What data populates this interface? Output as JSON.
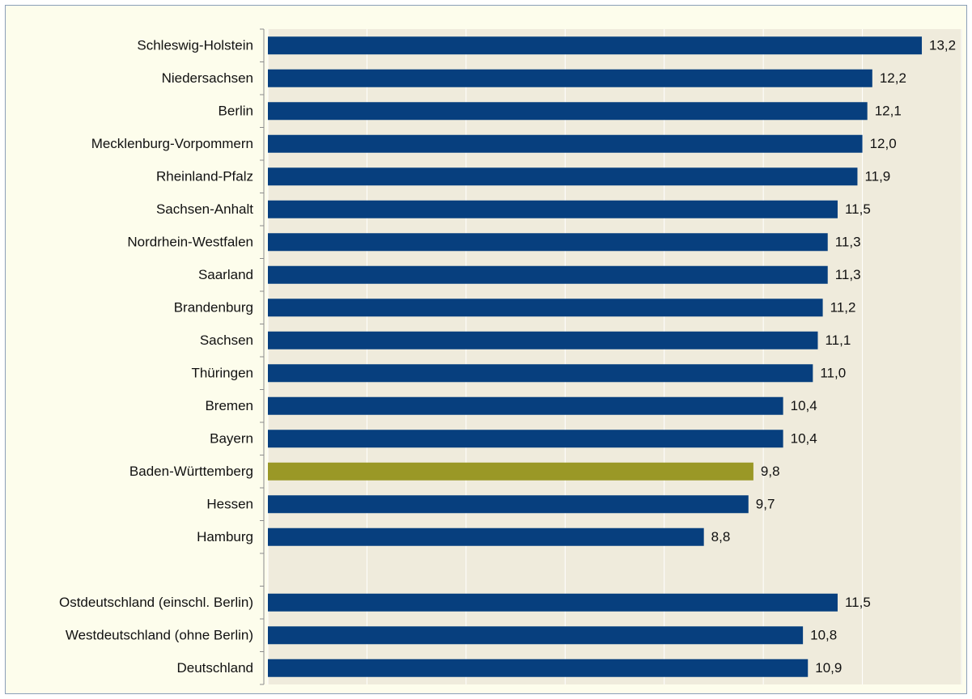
{
  "chart_data": {
    "type": "barh",
    "categories": [
      "Schleswig-Holstein",
      "Niedersachsen",
      "Berlin",
      "Mecklenburg-Vorpommern",
      "Rheinland-Pfalz",
      "Sachsen-Anhalt",
      "Nordrhein-Westfalen",
      "Saarland",
      "Brandenburg",
      "Sachsen",
      "Thüringen",
      "Bremen",
      "Bayern",
      "Baden-Württemberg",
      "Hessen",
      "Hamburg",
      null,
      "Ostdeutschland (einschl. Berlin)",
      "Westdeutschland (ohne Berlin)",
      "Deutschland"
    ],
    "values": [
      13.2,
      12.2,
      12.1,
      12.0,
      11.9,
      11.5,
      11.3,
      11.3,
      11.2,
      11.1,
      11.0,
      10.4,
      10.4,
      9.8,
      9.7,
      8.8,
      null,
      11.5,
      10.8,
      10.9
    ],
    "value_labels": [
      "13,2",
      "12,2",
      "12,1",
      "12,0",
      "11,9",
      "11,5",
      "11,3",
      "11,3",
      "11,2",
      "11,1",
      "11,0",
      "10,4",
      "10,4",
      "9,8",
      "9,7",
      "8,8",
      null,
      "11,5",
      "10,8",
      "10,9"
    ],
    "colors": [
      "#073f7e",
      "#073f7e",
      "#073f7e",
      "#073f7e",
      "#073f7e",
      "#073f7e",
      "#073f7e",
      "#073f7e",
      "#073f7e",
      "#073f7e",
      "#073f7e",
      "#073f7e",
      "#073f7e",
      "#9a9826",
      "#073f7e",
      "#073f7e",
      null,
      "#073f7e",
      "#073f7e",
      "#073f7e"
    ],
    "xlim": [
      0,
      14
    ],
    "xticks": [
      0,
      2,
      4,
      6,
      8,
      10,
      12,
      14
    ],
    "grid": true
  }
}
